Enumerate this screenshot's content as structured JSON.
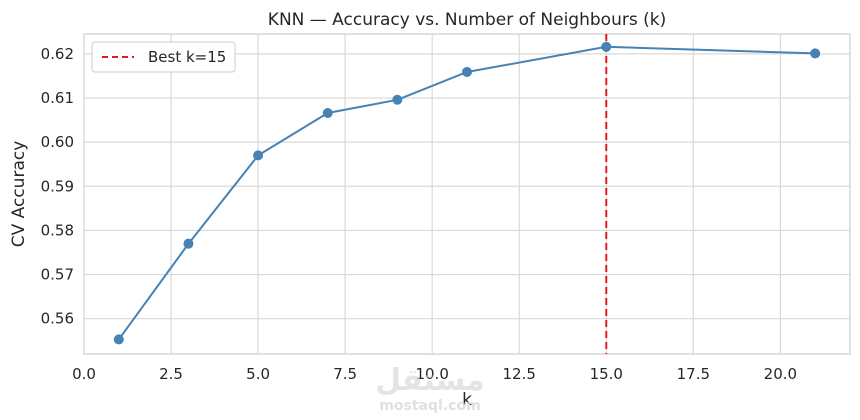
{
  "chart_data": {
    "type": "line",
    "title": "KNN — Accuracy vs. Number of Neighbours (k)",
    "xlabel": "k",
    "ylabel": "CV Accuracy",
    "xlim": [
      0,
      22
    ],
    "ylim": [
      0.552,
      0.6245
    ],
    "x_ticks": [
      0.0,
      2.5,
      5.0,
      7.5,
      10.0,
      12.5,
      15.0,
      17.5,
      20.0
    ],
    "x_tick_labels": [
      "0.0",
      "2.5",
      "5.0",
      "7.5",
      "10.0",
      "12.5",
      "15.0",
      "17.5",
      "20.0"
    ],
    "y_ticks": [
      0.56,
      0.57,
      0.58,
      0.59,
      0.6,
      0.61,
      0.62
    ],
    "y_tick_labels": [
      "0.56",
      "0.57",
      "0.58",
      "0.59",
      "0.60",
      "0.61",
      "0.62"
    ],
    "grid": true,
    "legend_position": "top-left",
    "series": [
      {
        "x": [
          1,
          3,
          5,
          7,
          9,
          11,
          15,
          21
        ],
        "y": [
          0.5553,
          0.577,
          0.597,
          0.6066,
          0.6096,
          0.6159,
          0.6216,
          0.6201
        ],
        "color": "#4682b4",
        "marker": "circle"
      }
    ],
    "reference_line": {
      "orientation": "vertical",
      "x": 15,
      "label": "Best k=15",
      "color": "#e8191c",
      "style": "dashed"
    }
  },
  "watermark": {
    "text": "مستقل",
    "subtext": "mostaql.com"
  }
}
